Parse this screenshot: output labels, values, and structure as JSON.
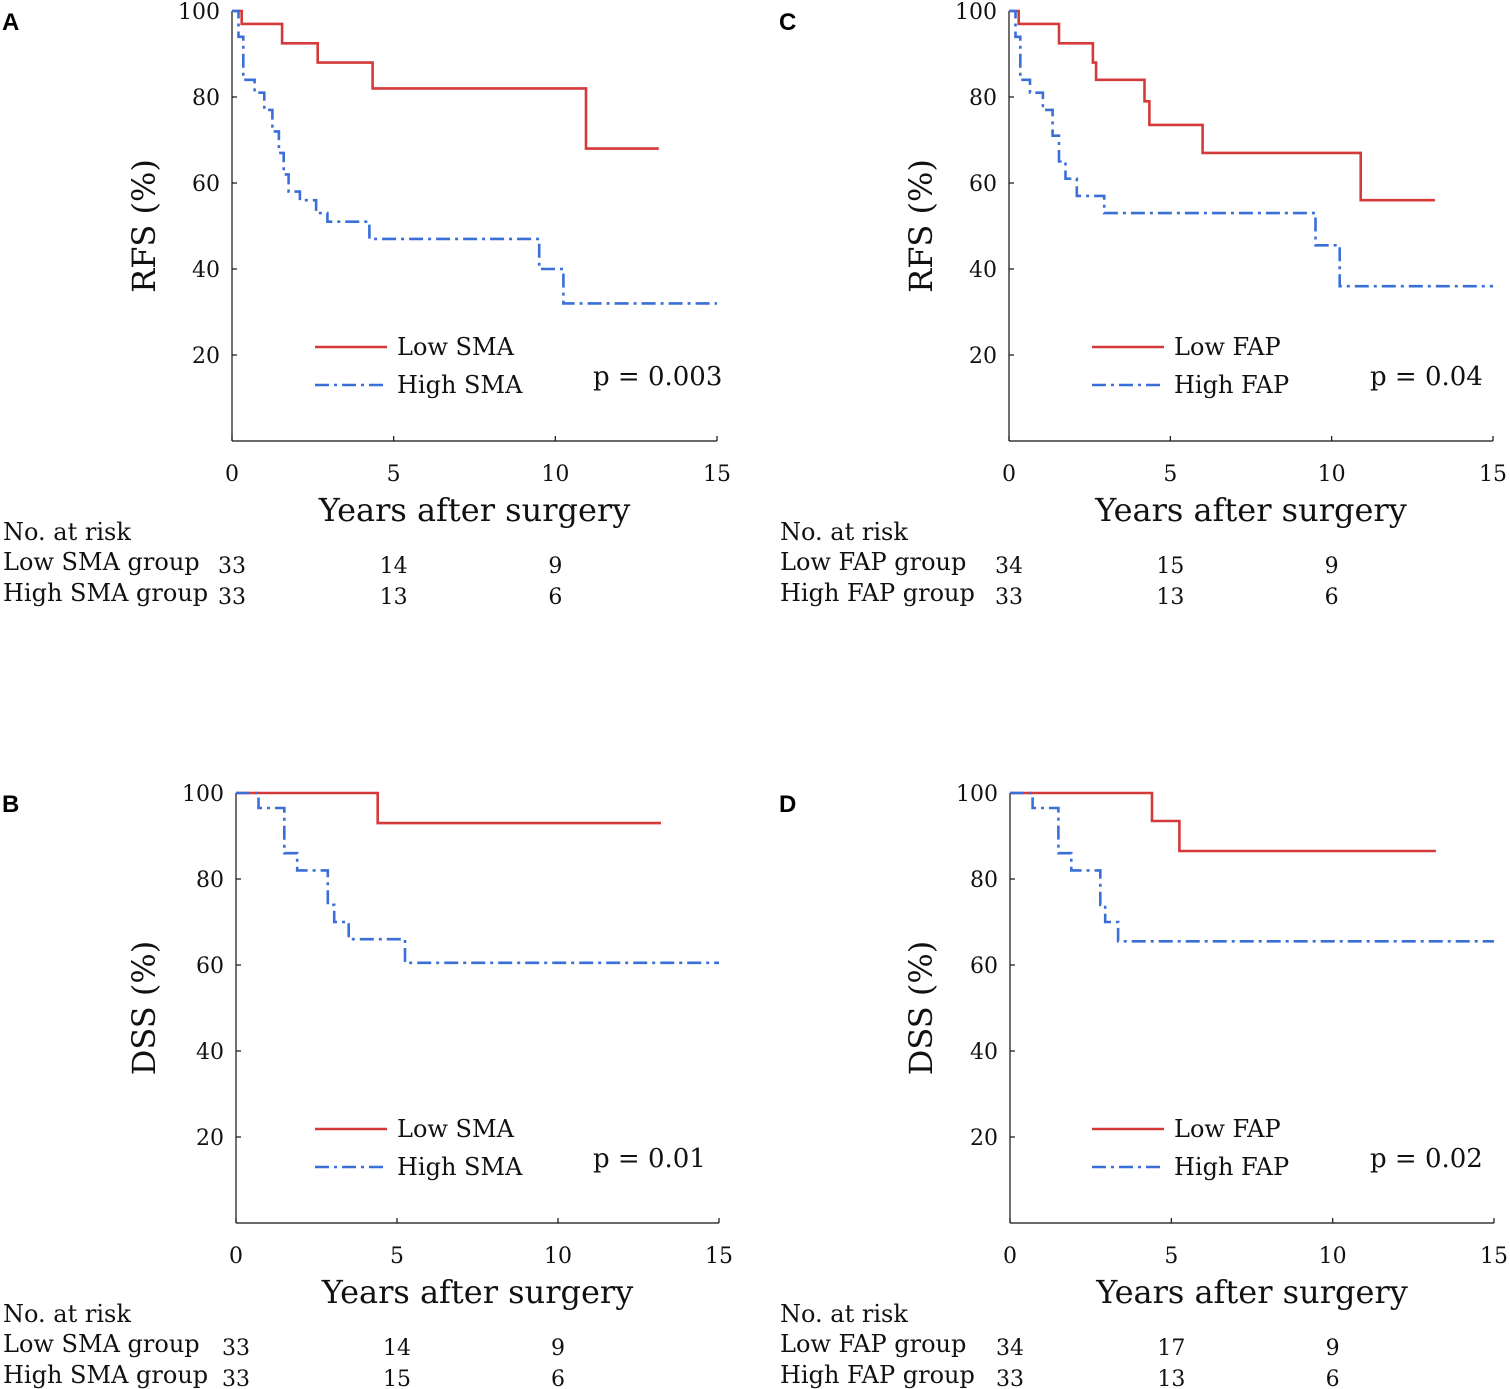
{
  "colors": {
    "low": "#d43a3a",
    "high": "#3a6fd8",
    "axis": "#111111"
  },
  "chart_data": [
    {
      "panel": "A",
      "type": "line",
      "subtype": "kaplan-meier",
      "ylabel": "RFS (%)",
      "xlabel": "Years after surgery",
      "xlim": [
        0,
        15
      ],
      "ylim": [
        0,
        100
      ],
      "xticks": [
        "0",
        "5",
        "10",
        "15"
      ],
      "yticks": [
        "100",
        "80",
        "60",
        "40",
        "20"
      ],
      "legend": [
        "Low SMA",
        "High SMA"
      ],
      "pvalue": "p = 0.003",
      "series": [
        {
          "name": "Low SMA",
          "style": "solid",
          "x": [
            0,
            0.3,
            0.3,
            1.55,
            1.55,
            2.65,
            2.65,
            4.35,
            4.35,
            10.95,
            10.95,
            13.2
          ],
          "y": [
            100,
            100,
            97,
            97,
            92.5,
            92.5,
            88,
            88,
            82,
            82,
            68,
            68
          ]
        },
        {
          "name": "High SMA",
          "style": "dashdot",
          "x": [
            0,
            0.2,
            0.2,
            0.35,
            0.35,
            0.7,
            0.7,
            1.0,
            1.0,
            1.25,
            1.25,
            1.45,
            1.45,
            1.6,
            1.6,
            1.75,
            1.75,
            2.1,
            2.1,
            2.6,
            2.6,
            2.95,
            2.95,
            4.25,
            4.25,
            9.5,
            9.5,
            10.25,
            10.25,
            15
          ],
          "y": [
            100,
            100,
            94,
            94,
            84,
            84,
            81,
            81,
            77,
            77,
            72,
            72,
            67,
            67,
            62,
            62,
            58,
            58,
            56,
            56,
            53,
            53,
            51,
            51,
            47,
            47,
            40,
            40,
            32,
            32
          ]
        }
      ],
      "risk": {
        "header": "No. at risk",
        "rows": [
          {
            "label": "Low SMA group",
            "values": [
              "33",
              "14",
              "9"
            ]
          },
          {
            "label": "High SMA group",
            "values": [
              "33",
              "13",
              "6"
            ]
          }
        ]
      }
    },
    {
      "panel": "B",
      "type": "line",
      "subtype": "kaplan-meier",
      "ylabel": "DSS (%)",
      "xlabel": "Years after surgery",
      "xlim": [
        0,
        15
      ],
      "ylim": [
        0,
        100
      ],
      "xticks": [
        "0",
        "5",
        "10",
        "15"
      ],
      "yticks": [
        "100",
        "80",
        "60",
        "40",
        "20"
      ],
      "legend": [
        "Low SMA",
        "High SMA"
      ],
      "pvalue": "p = 0.01",
      "series": [
        {
          "name": "Low SMA",
          "style": "solid",
          "x": [
            0,
            4.4,
            4.4,
            13.2
          ],
          "y": [
            100,
            100,
            93,
            93
          ]
        },
        {
          "name": "High SMA",
          "style": "dashdot",
          "x": [
            0,
            0.7,
            0.7,
            1.5,
            1.5,
            1.9,
            1.9,
            2.85,
            2.85,
            3.05,
            3.05,
            3.5,
            3.5,
            5.25,
            5.25,
            15
          ],
          "y": [
            100,
            100,
            96.5,
            96.5,
            86,
            86,
            82,
            82,
            74,
            74,
            70,
            70,
            66,
            66,
            60.5,
            60.5
          ]
        }
      ],
      "risk": {
        "header": "No. at risk",
        "rows": [
          {
            "label": "Low SMA group",
            "values": [
              "33",
              "14",
              "9"
            ]
          },
          {
            "label": "High SMA group",
            "values": [
              "33",
              "15",
              "6"
            ]
          }
        ]
      }
    },
    {
      "panel": "C",
      "type": "line",
      "subtype": "kaplan-meier",
      "ylabel": "RFS (%)",
      "xlabel": "Years after surgery",
      "xlim": [
        0,
        15
      ],
      "ylim": [
        0,
        100
      ],
      "xticks": [
        "0",
        "5",
        "10",
        "15"
      ],
      "yticks": [
        "100",
        "80",
        "60",
        "40",
        "20"
      ],
      "legend": [
        "Low FAP",
        "High FAP"
      ],
      "pvalue": "p = 0.04",
      "series": [
        {
          "name": "Low FAP",
          "style": "solid",
          "x": [
            0,
            0.3,
            0.3,
            1.55,
            1.55,
            2.6,
            2.6,
            2.7,
            2.7,
            4.2,
            4.2,
            4.35,
            4.35,
            6.0,
            6.0,
            10.9,
            10.9,
            13.2
          ],
          "y": [
            100,
            100,
            97,
            97,
            92.5,
            92.5,
            88,
            88,
            84,
            84,
            79,
            79,
            73.5,
            73.5,
            67,
            67,
            56,
            56
          ]
        },
        {
          "name": "High FAP",
          "style": "dashdot",
          "x": [
            0,
            0.2,
            0.2,
            0.35,
            0.35,
            0.65,
            0.65,
            1.05,
            1.05,
            1.35,
            1.35,
            1.55,
            1.55,
            1.75,
            1.75,
            2.1,
            2.1,
            2.95,
            2.95,
            9.5,
            9.5,
            10.25,
            10.25,
            15
          ],
          "y": [
            100,
            100,
            94,
            94,
            84,
            84,
            81,
            81,
            77,
            77,
            71,
            71,
            65,
            65,
            61,
            61,
            57,
            57,
            53,
            53,
            45.5,
            45.5,
            36,
            36
          ]
        }
      ],
      "risk": {
        "header": "No. at risk",
        "rows": [
          {
            "label": "Low FAP group",
            "values": [
              "34",
              "15",
              "9"
            ]
          },
          {
            "label": "High FAP group",
            "values": [
              "33",
              "13",
              "6"
            ]
          }
        ]
      }
    },
    {
      "panel": "D",
      "type": "line",
      "subtype": "kaplan-meier",
      "ylabel": "DSS (%)",
      "xlabel": "Years after surgery",
      "xlim": [
        0,
        15
      ],
      "ylim": [
        0,
        100
      ],
      "xticks": [
        "0",
        "5",
        "10",
        "15"
      ],
      "yticks": [
        "100",
        "80",
        "60",
        "40",
        "20"
      ],
      "legend": [
        "Low FAP",
        "High FAP"
      ],
      "pvalue": "p = 0.02",
      "series": [
        {
          "name": "Low FAP",
          "style": "solid",
          "x": [
            0,
            4.4,
            4.4,
            5.25,
            5.25,
            13.2
          ],
          "y": [
            100,
            100,
            93.5,
            93.5,
            86.5,
            86.5
          ]
        },
        {
          "name": "High FAP",
          "style": "dashdot",
          "x": [
            0,
            0.7,
            0.7,
            1.5,
            1.5,
            1.9,
            1.9,
            2.8,
            2.8,
            2.95,
            2.95,
            3.35,
            3.35,
            15
          ],
          "y": [
            100,
            100,
            96.5,
            96.5,
            86,
            86,
            82,
            82,
            74,
            74,
            70,
            70,
            65.5,
            65.5
          ]
        }
      ],
      "risk": {
        "header": "No. at risk",
        "rows": [
          {
            "label": "Low FAP group",
            "values": [
              "34",
              "17",
              "9"
            ]
          },
          {
            "label": "High FAP group",
            "values": [
              "33",
              "13",
              "6"
            ]
          }
        ]
      }
    }
  ]
}
